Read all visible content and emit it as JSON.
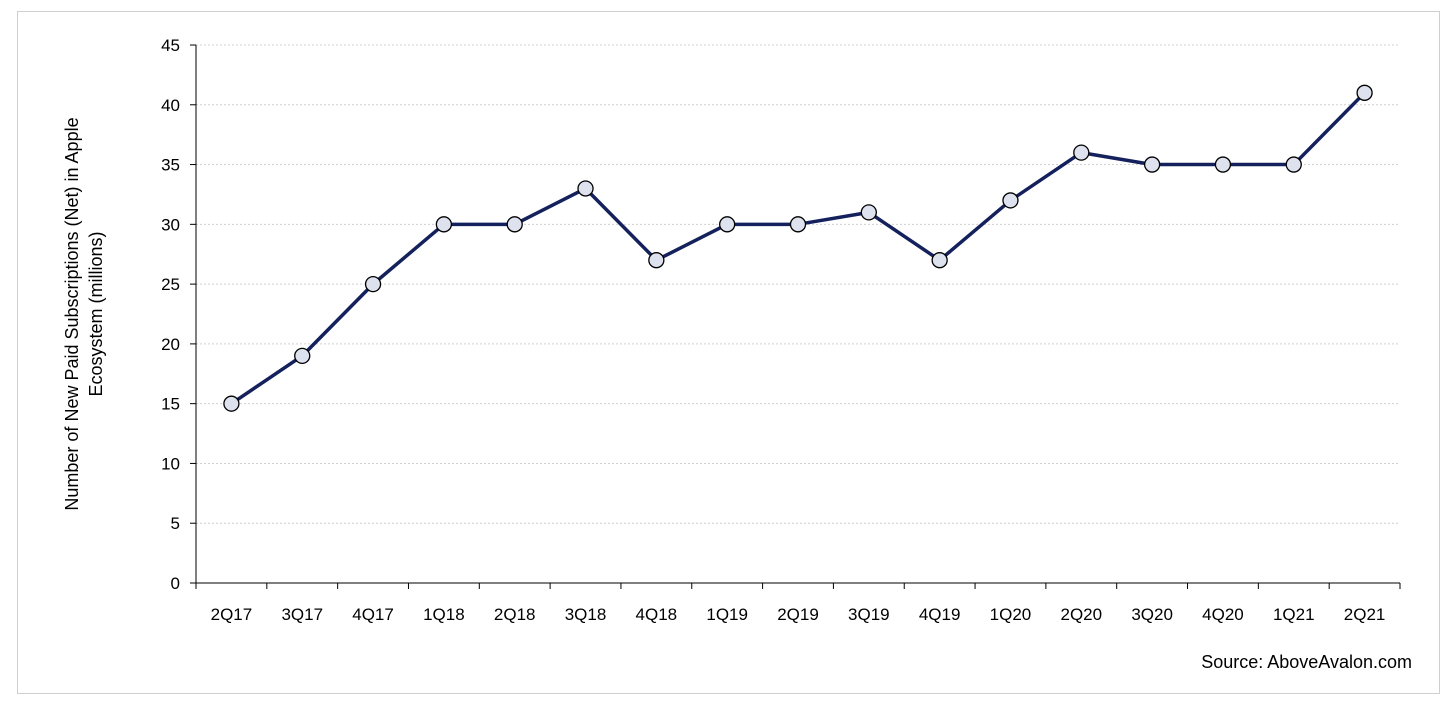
{
  "chart_data": {
    "type": "line",
    "categories": [
      "2Q17",
      "3Q17",
      "4Q17",
      "1Q18",
      "2Q18",
      "3Q18",
      "4Q18",
      "1Q19",
      "2Q19",
      "3Q19",
      "4Q19",
      "1Q20",
      "2Q20",
      "3Q20",
      "4Q20",
      "1Q21",
      "2Q21"
    ],
    "series": [
      {
        "values": [
          15,
          19,
          25,
          30,
          30,
          33,
          27,
          30,
          30,
          31,
          27,
          32,
          36,
          35,
          35,
          35,
          41
        ]
      }
    ],
    "title": "",
    "xlabel": "",
    "ylabel_lines": [
      "Number of New Paid Subscriptions (Net) in Apple",
      "Ecosystem (millions)"
    ],
    "ylim": [
      0,
      45
    ],
    "yticks": [
      0,
      5,
      10,
      15,
      20,
      25,
      30,
      35,
      40,
      45
    ],
    "grid": true,
    "legend": "none",
    "colors": {
      "line": "#14215c",
      "marker_fill": "#dde2ee",
      "grid": "#d0d0d0"
    },
    "source": "Source: AboveAvalon.com"
  }
}
